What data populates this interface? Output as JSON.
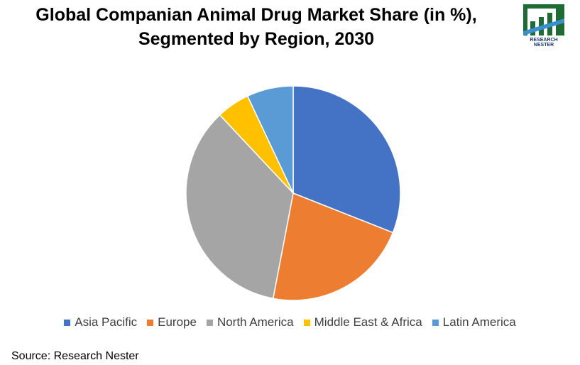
{
  "title_line1": "Global Companian Animal Drug Market Share (in %),",
  "title_line2": "Segmented by Region, 2030",
  "logo_text": "RESEARCH NESTER",
  "source": "Source: Research Nester",
  "chart_data": {
    "type": "pie",
    "title": "Global Companian Animal Drug Market Share (in %), Segmented by Region, 2030",
    "categories": [
      "Asia Pacific",
      "Europe",
      "North America",
      "Middle East & Africa",
      "Latin America"
    ],
    "values": [
      31,
      22,
      35,
      5,
      7
    ],
    "colors": [
      "#4472C4",
      "#ED7D31",
      "#A5A5A5",
      "#FFC000",
      "#5B9BD5"
    ],
    "start_angle": "12 o'clock, clockwise",
    "legend": "bottom"
  }
}
